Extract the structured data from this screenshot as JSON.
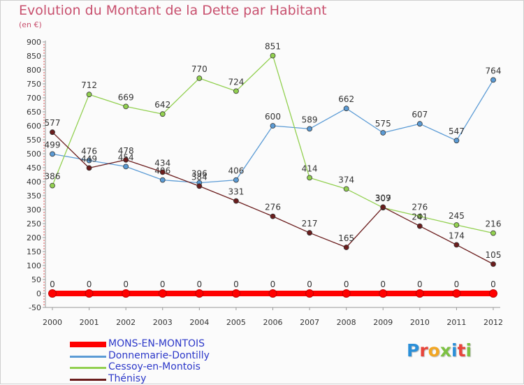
{
  "title": "Evolution du Montant de la Dette par Habitant",
  "unit": "(en €)",
  "logo": {
    "text": "Proxiti",
    "letter_colors": [
      "#2b8fd8",
      "#e8443a",
      "#f2a623",
      "#7cc142",
      "#2b8fd8",
      "#e8443a",
      "#7cc142"
    ]
  },
  "chart_data": {
    "type": "line",
    "title": "Evolution du Montant de la Dette par Habitant",
    "unit": "(en €)",
    "xlabel": "",
    "ylabel": "",
    "x": [
      2000,
      2001,
      2002,
      2003,
      2004,
      2005,
      2006,
      2007,
      2008,
      2009,
      2010,
      2011,
      2012
    ],
    "ylim": [
      -50,
      900
    ],
    "yticks": [
      -50,
      0,
      50,
      100,
      150,
      200,
      250,
      300,
      350,
      400,
      450,
      500,
      550,
      600,
      650,
      700,
      750,
      800,
      850,
      900
    ],
    "grid": false,
    "legend": "bottom-left",
    "series": [
      {
        "name": "MONS-EN-MONTOIS",
        "color": "#ff0000",
        "values": [
          0,
          0,
          0,
          0,
          0,
          0,
          0,
          0,
          0,
          0,
          0,
          0,
          0
        ]
      },
      {
        "name": "Donnemarie-Dontilly",
        "color": "#5b9bd5",
        "values": [
          499,
          476,
          454,
          406,
          396,
          406,
          600,
          589,
          662,
          575,
          607,
          547,
          764
        ]
      },
      {
        "name": "Cessoy-en-Montois",
        "color": "#92d050",
        "values": [
          386,
          712,
          669,
          642,
          770,
          724,
          851,
          414,
          374,
          307,
          276,
          245,
          216
        ]
      },
      {
        "name": "Thénisy",
        "color": "#6b1d1d",
        "values": [
          577,
          449,
          478,
          434,
          384,
          331,
          276,
          217,
          165,
          309,
          241,
          174,
          105
        ]
      }
    ]
  }
}
